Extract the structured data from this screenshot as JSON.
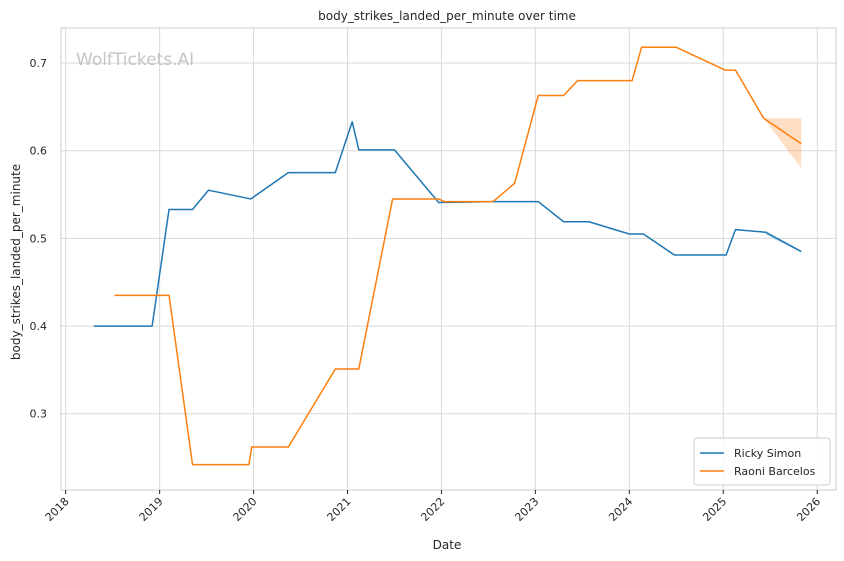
{
  "chart_data": {
    "type": "line",
    "title": "body_strikes_landed_per_minute over time",
    "xlabel": "Date",
    "ylabel": "body_strikes_landed_per_minute",
    "watermark": "WolfTickets.AI",
    "xlim": [
      2017.95,
      2026.2
    ],
    "ylim": [
      0.213,
      0.74
    ],
    "x_ticks": [
      2018,
      2019,
      2020,
      2021,
      2022,
      2023,
      2024,
      2025,
      2026
    ],
    "x_tick_labels": [
      "2018",
      "2019",
      "2020",
      "2021",
      "2022",
      "2023",
      "2024",
      "2025",
      "2026"
    ],
    "y_ticks": [
      0.3,
      0.4,
      0.5,
      0.6,
      0.7
    ],
    "y_tick_labels": [
      "0.3",
      "0.4",
      "0.5",
      "0.6",
      "0.7"
    ],
    "grid": true,
    "legend_position": "bottom-right",
    "series": [
      {
        "name": "Ricky Simon",
        "color": "#1f77b4",
        "points": [
          [
            2018.3,
            0.4
          ],
          [
            2018.92,
            0.4
          ],
          [
            2019.1,
            0.533
          ],
          [
            2019.35,
            0.533
          ],
          [
            2019.52,
            0.555
          ],
          [
            2019.97,
            0.545
          ],
          [
            2020.37,
            0.575
          ],
          [
            2020.87,
            0.575
          ],
          [
            2021.05,
            0.633
          ],
          [
            2021.12,
            0.601
          ],
          [
            2021.5,
            0.601
          ],
          [
            2021.97,
            0.541
          ],
          [
            2022.55,
            0.542
          ],
          [
            2023.03,
            0.542
          ],
          [
            2023.3,
            0.519
          ],
          [
            2023.57,
            0.519
          ],
          [
            2024.0,
            0.505
          ],
          [
            2024.15,
            0.505
          ],
          [
            2024.48,
            0.481
          ],
          [
            2025.03,
            0.481
          ],
          [
            2025.13,
            0.51
          ],
          [
            2025.45,
            0.507
          ],
          [
            2025.83,
            0.485
          ]
        ],
        "band": [
          [
            2025.45,
            0.504,
            0.509
          ],
          [
            2025.83,
            0.484,
            0.486
          ]
        ]
      },
      {
        "name": "Raoni Barcelos",
        "color": "#ff7f0e",
        "points": [
          [
            2018.52,
            0.435
          ],
          [
            2019.1,
            0.435
          ],
          [
            2019.35,
            0.242
          ],
          [
            2019.95,
            0.242
          ],
          [
            2019.98,
            0.262
          ],
          [
            2020.37,
            0.262
          ],
          [
            2020.87,
            0.351
          ],
          [
            2021.12,
            0.351
          ],
          [
            2021.48,
            0.545
          ],
          [
            2021.97,
            0.545
          ],
          [
            2022.03,
            0.542
          ],
          [
            2022.55,
            0.542
          ],
          [
            2022.78,
            0.563
          ],
          [
            2023.03,
            0.663
          ],
          [
            2023.3,
            0.663
          ],
          [
            2023.45,
            0.68
          ],
          [
            2024.03,
            0.68
          ],
          [
            2024.13,
            0.718
          ],
          [
            2024.5,
            0.718
          ],
          [
            2025.02,
            0.692
          ],
          [
            2025.13,
            0.692
          ],
          [
            2025.43,
            0.637
          ],
          [
            2025.83,
            0.608
          ]
        ],
        "band": [
          [
            2025.43,
            0.637,
            0.637
          ],
          [
            2025.83,
            0.58,
            0.637
          ]
        ]
      }
    ]
  }
}
